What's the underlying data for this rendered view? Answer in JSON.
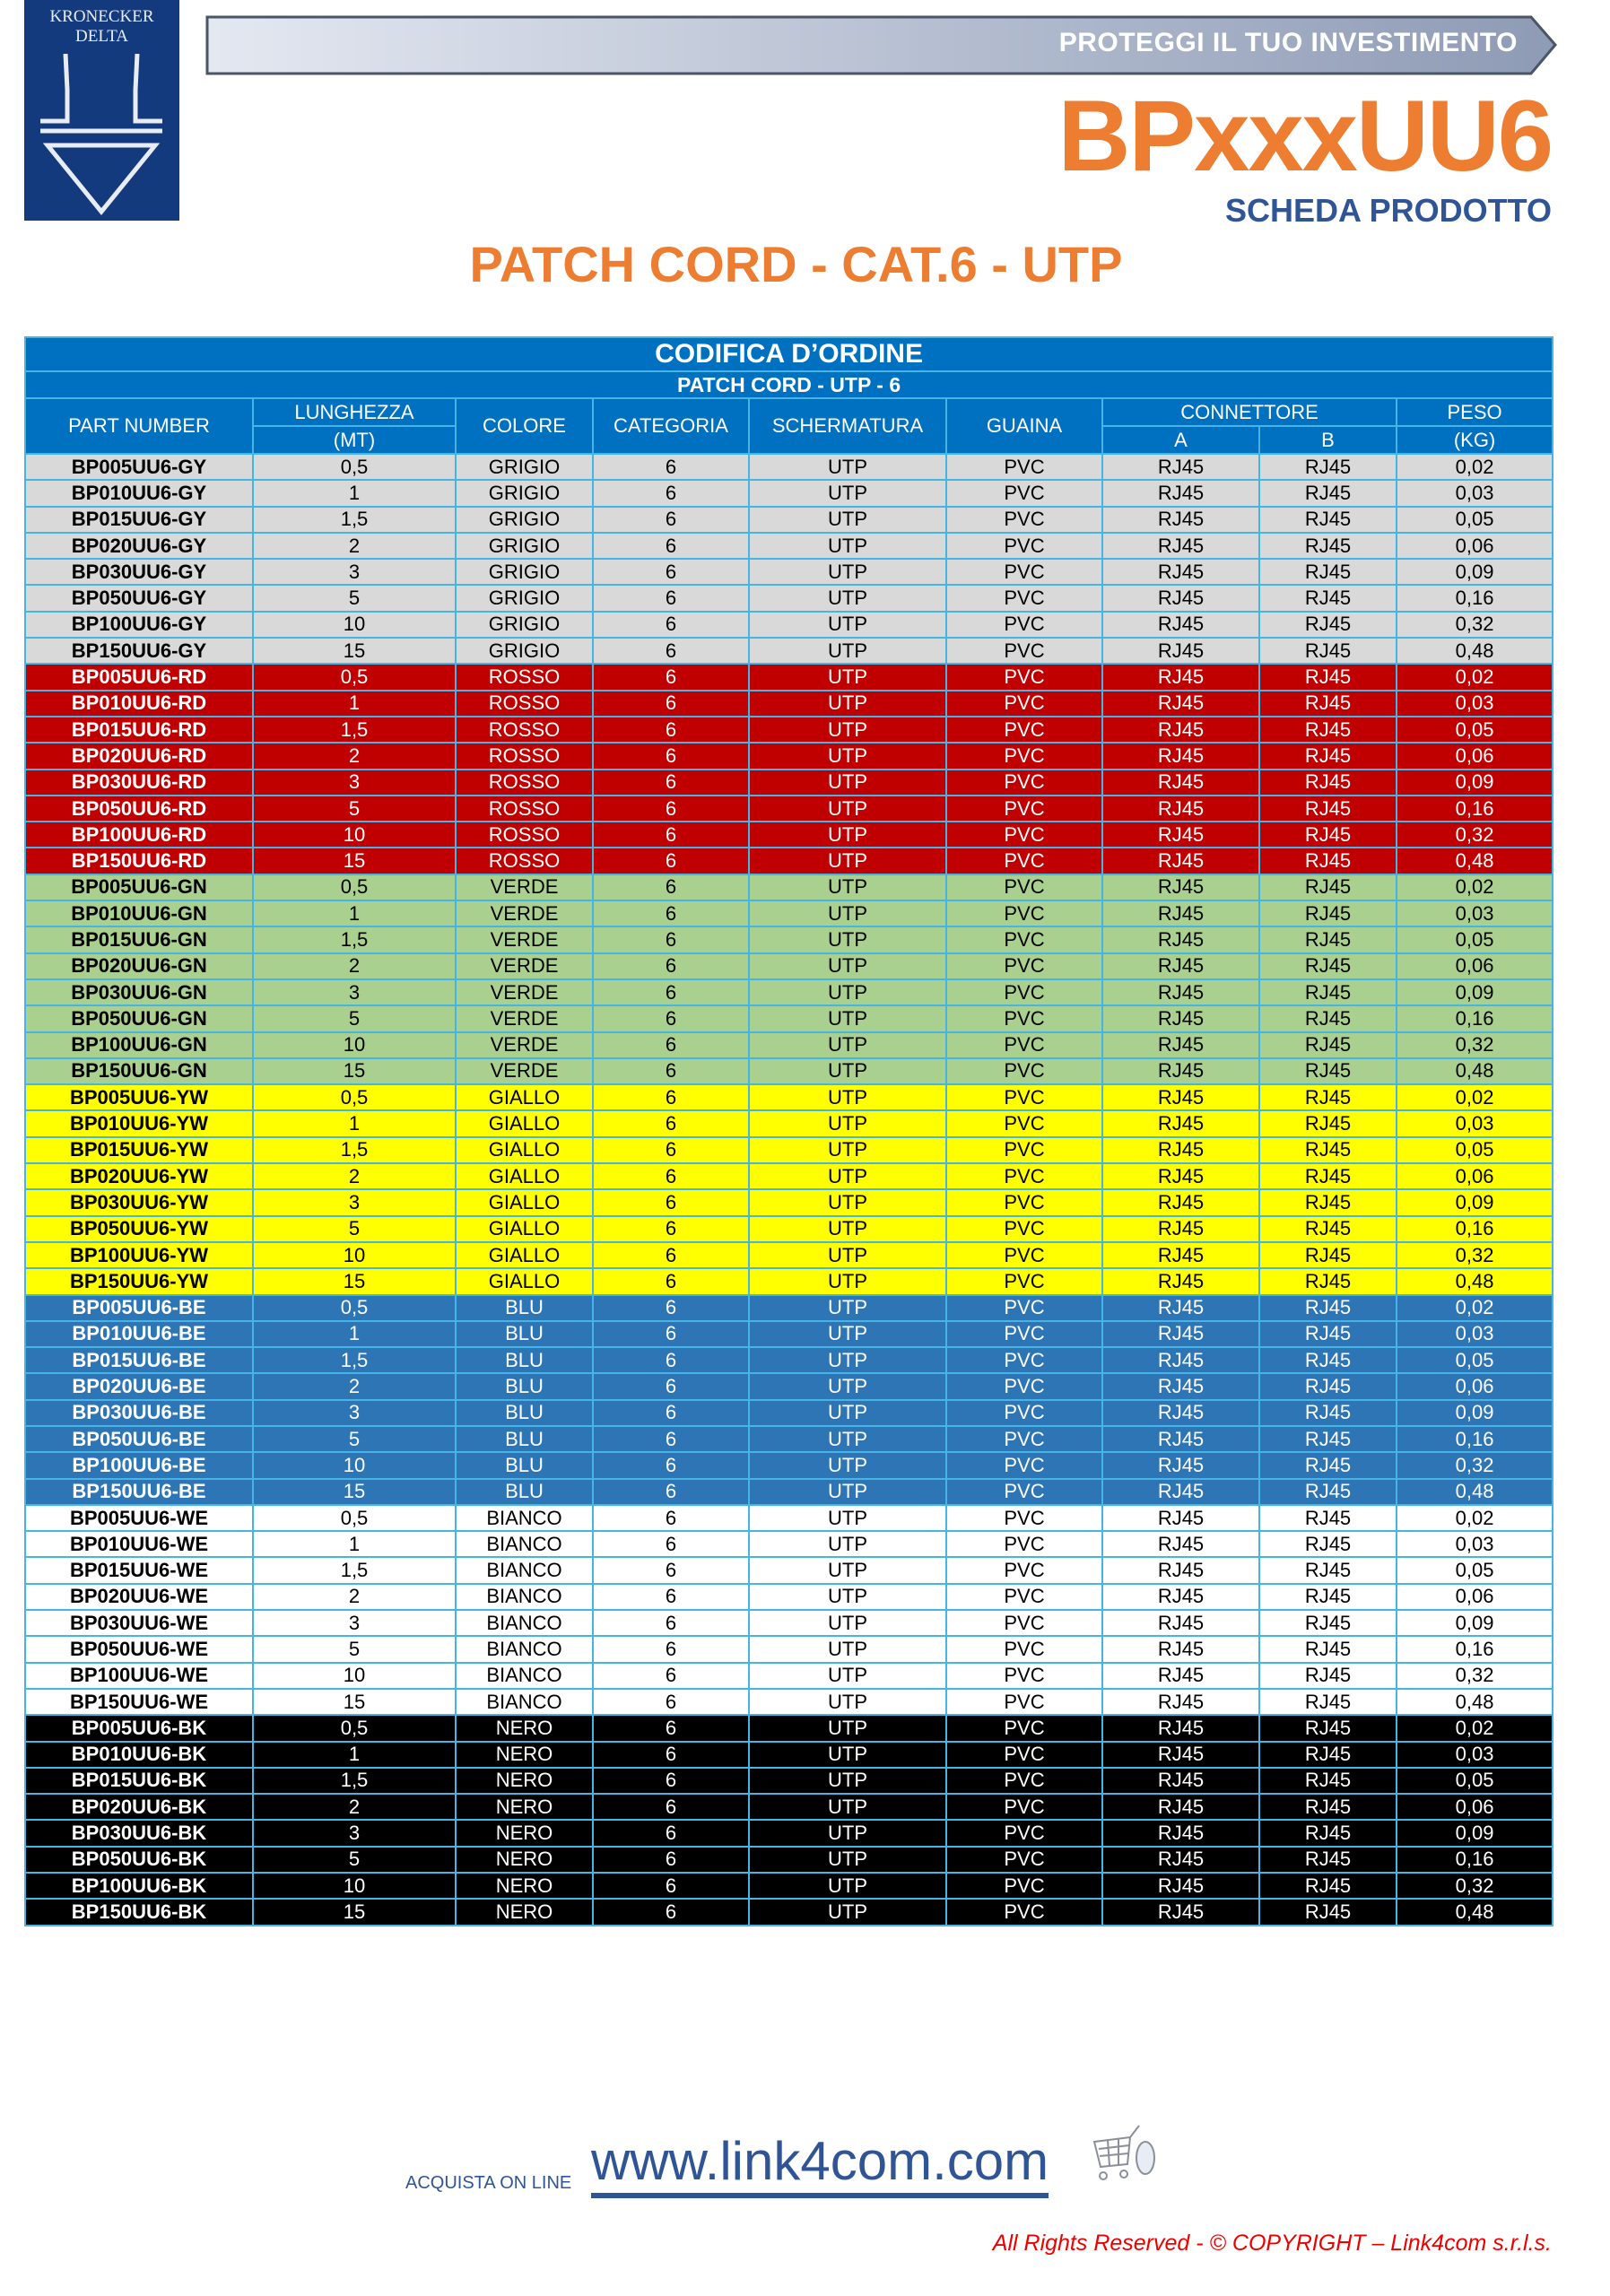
{
  "header": {
    "logo_text": "KRONECKER DELTA",
    "banner": "PROTEGGI IL TUO INVESTIMENTO",
    "product_code": "BPxxxUU6",
    "subtitle": "SCHEDA PRODOTTO",
    "title": "PATCH CORD - CAT.6 - UTP"
  },
  "table": {
    "title": "CODIFICA D’ORDINE",
    "subtitle": "PATCH CORD - UTP - 6",
    "headers": {
      "part_number": "PART NUMBER",
      "lunghezza": "LUNGHEZZA",
      "lunghezza_unit": "(MT)",
      "colore": "COLORE",
      "categoria": "CATEGORIA",
      "schermatura": "SCHERMATURA",
      "guaina": "GUAINA",
      "connettore": "CONNETTORE",
      "conn_a": "A",
      "conn_b": "B",
      "peso": "PESO",
      "peso_unit": "(KG)"
    },
    "groups": [
      {
        "bg": "#d9d9d9",
        "fg": "#000000",
        "rows": [
          [
            "BP005UU6-GY",
            "0,5",
            "GRIGIO",
            "6",
            "UTP",
            "PVC",
            "RJ45",
            "RJ45",
            "0,02"
          ],
          [
            "BP010UU6-GY",
            "1",
            "GRIGIO",
            "6",
            "UTP",
            "PVC",
            "RJ45",
            "RJ45",
            "0,03"
          ],
          [
            "BP015UU6-GY",
            "1,5",
            "GRIGIO",
            "6",
            "UTP",
            "PVC",
            "RJ45",
            "RJ45",
            "0,05"
          ],
          [
            "BP020UU6-GY",
            "2",
            "GRIGIO",
            "6",
            "UTP",
            "PVC",
            "RJ45",
            "RJ45",
            "0,06"
          ],
          [
            "BP030UU6-GY",
            "3",
            "GRIGIO",
            "6",
            "UTP",
            "PVC",
            "RJ45",
            "RJ45",
            "0,09"
          ],
          [
            "BP050UU6-GY",
            "5",
            "GRIGIO",
            "6",
            "UTP",
            "PVC",
            "RJ45",
            "RJ45",
            "0,16"
          ],
          [
            "BP100UU6-GY",
            "10",
            "GRIGIO",
            "6",
            "UTP",
            "PVC",
            "RJ45",
            "RJ45",
            "0,32"
          ],
          [
            "BP150UU6-GY",
            "15",
            "GRIGIO",
            "6",
            "UTP",
            "PVC",
            "RJ45",
            "RJ45",
            "0,48"
          ]
        ]
      },
      {
        "bg": "#c00000",
        "fg": "#ffffff",
        "rows": [
          [
            "BP005UU6-RD",
            "0,5",
            "ROSSO",
            "6",
            "UTP",
            "PVC",
            "RJ45",
            "RJ45",
            "0,02"
          ],
          [
            "BP010UU6-RD",
            "1",
            "ROSSO",
            "6",
            "UTP",
            "PVC",
            "RJ45",
            "RJ45",
            "0,03"
          ],
          [
            "BP015UU6-RD",
            "1,5",
            "ROSSO",
            "6",
            "UTP",
            "PVC",
            "RJ45",
            "RJ45",
            "0,05"
          ],
          [
            "BP020UU6-RD",
            "2",
            "ROSSO",
            "6",
            "UTP",
            "PVC",
            "RJ45",
            "RJ45",
            "0,06"
          ],
          [
            "BP030UU6-RD",
            "3",
            "ROSSO",
            "6",
            "UTP",
            "PVC",
            "RJ45",
            "RJ45",
            "0,09"
          ],
          [
            "BP050UU6-RD",
            "5",
            "ROSSO",
            "6",
            "UTP",
            "PVC",
            "RJ45",
            "RJ45",
            "0,16"
          ],
          [
            "BP100UU6-RD",
            "10",
            "ROSSO",
            "6",
            "UTP",
            "PVC",
            "RJ45",
            "RJ45",
            "0,32"
          ],
          [
            "BP150UU6-RD",
            "15",
            "ROSSO",
            "6",
            "UTP",
            "PVC",
            "RJ45",
            "RJ45",
            "0,48"
          ]
        ]
      },
      {
        "bg": "#a9d08e",
        "fg": "#000000",
        "rows": [
          [
            "BP005UU6-GN",
            "0,5",
            "VERDE",
            "6",
            "UTP",
            "PVC",
            "RJ45",
            "RJ45",
            "0,02"
          ],
          [
            "BP010UU6-GN",
            "1",
            "VERDE",
            "6",
            "UTP",
            "PVC",
            "RJ45",
            "RJ45",
            "0,03"
          ],
          [
            "BP015UU6-GN",
            "1,5",
            "VERDE",
            "6",
            "UTP",
            "PVC",
            "RJ45",
            "RJ45",
            "0,05"
          ],
          [
            "BP020UU6-GN",
            "2",
            "VERDE",
            "6",
            "UTP",
            "PVC",
            "RJ45",
            "RJ45",
            "0,06"
          ],
          [
            "BP030UU6-GN",
            "3",
            "VERDE",
            "6",
            "UTP",
            "PVC",
            "RJ45",
            "RJ45",
            "0,09"
          ],
          [
            "BP050UU6-GN",
            "5",
            "VERDE",
            "6",
            "UTP",
            "PVC",
            "RJ45",
            "RJ45",
            "0,16"
          ],
          [
            "BP100UU6-GN",
            "10",
            "VERDE",
            "6",
            "UTP",
            "PVC",
            "RJ45",
            "RJ45",
            "0,32"
          ],
          [
            "BP150UU6-GN",
            "15",
            "VERDE",
            "6",
            "UTP",
            "PVC",
            "RJ45",
            "RJ45",
            "0,48"
          ]
        ]
      },
      {
        "bg": "#ffff00",
        "fg": "#000000",
        "rows": [
          [
            "BP005UU6-YW",
            "0,5",
            "GIALLO",
            "6",
            "UTP",
            "PVC",
            "RJ45",
            "RJ45",
            "0,02"
          ],
          [
            "BP010UU6-YW",
            "1",
            "GIALLO",
            "6",
            "UTP",
            "PVC",
            "RJ45",
            "RJ45",
            "0,03"
          ],
          [
            "BP015UU6-YW",
            "1,5",
            "GIALLO",
            "6",
            "UTP",
            "PVC",
            "RJ45",
            "RJ45",
            "0,05"
          ],
          [
            "BP020UU6-YW",
            "2",
            "GIALLO",
            "6",
            "UTP",
            "PVC",
            "RJ45",
            "RJ45",
            "0,06"
          ],
          [
            "BP030UU6-YW",
            "3",
            "GIALLO",
            "6",
            "UTP",
            "PVC",
            "RJ45",
            "RJ45",
            "0,09"
          ],
          [
            "BP050UU6-YW",
            "5",
            "GIALLO",
            "6",
            "UTP",
            "PVC",
            "RJ45",
            "RJ45",
            "0,16"
          ],
          [
            "BP100UU6-YW",
            "10",
            "GIALLO",
            "6",
            "UTP",
            "PVC",
            "RJ45",
            "RJ45",
            "0,32"
          ],
          [
            "BP150UU6-YW",
            "15",
            "GIALLO",
            "6",
            "UTP",
            "PVC",
            "RJ45",
            "RJ45",
            "0,48"
          ]
        ]
      },
      {
        "bg": "#2e75b6",
        "fg": "#ffffff",
        "rows": [
          [
            "BP005UU6-BE",
            "0,5",
            "BLU",
            "6",
            "UTP",
            "PVC",
            "RJ45",
            "RJ45",
            "0,02"
          ],
          [
            "BP010UU6-BE",
            "1",
            "BLU",
            "6",
            "UTP",
            "PVC",
            "RJ45",
            "RJ45",
            "0,03"
          ],
          [
            "BP015UU6-BE",
            "1,5",
            "BLU",
            "6",
            "UTP",
            "PVC",
            "RJ45",
            "RJ45",
            "0,05"
          ],
          [
            "BP020UU6-BE",
            "2",
            "BLU",
            "6",
            "UTP",
            "PVC",
            "RJ45",
            "RJ45",
            "0,06"
          ],
          [
            "BP030UU6-BE",
            "3",
            "BLU",
            "6",
            "UTP",
            "PVC",
            "RJ45",
            "RJ45",
            "0,09"
          ],
          [
            "BP050UU6-BE",
            "5",
            "BLU",
            "6",
            "UTP",
            "PVC",
            "RJ45",
            "RJ45",
            "0,16"
          ],
          [
            "BP100UU6-BE",
            "10",
            "BLU",
            "6",
            "UTP",
            "PVC",
            "RJ45",
            "RJ45",
            "0,32"
          ],
          [
            "BP150UU6-BE",
            "15",
            "BLU",
            "6",
            "UTP",
            "PVC",
            "RJ45",
            "RJ45",
            "0,48"
          ]
        ]
      },
      {
        "bg": "#ffffff",
        "fg": "#000000",
        "rows": [
          [
            "BP005UU6-WE",
            "0,5",
            "BIANCO",
            "6",
            "UTP",
            "PVC",
            "RJ45",
            "RJ45",
            "0,02"
          ],
          [
            "BP010UU6-WE",
            "1",
            "BIANCO",
            "6",
            "UTP",
            "PVC",
            "RJ45",
            "RJ45",
            "0,03"
          ],
          [
            "BP015UU6-WE",
            "1,5",
            "BIANCO",
            "6",
            "UTP",
            "PVC",
            "RJ45",
            "RJ45",
            "0,05"
          ],
          [
            "BP020UU6-WE",
            "2",
            "BIANCO",
            "6",
            "UTP",
            "PVC",
            "RJ45",
            "RJ45",
            "0,06"
          ],
          [
            "BP030UU6-WE",
            "3",
            "BIANCO",
            "6",
            "UTP",
            "PVC",
            "RJ45",
            "RJ45",
            "0,09"
          ],
          [
            "BP050UU6-WE",
            "5",
            "BIANCO",
            "6",
            "UTP",
            "PVC",
            "RJ45",
            "RJ45",
            "0,16"
          ],
          [
            "BP100UU6-WE",
            "10",
            "BIANCO",
            "6",
            "UTP",
            "PVC",
            "RJ45",
            "RJ45",
            "0,32"
          ],
          [
            "BP150UU6-WE",
            "15",
            "BIANCO",
            "6",
            "UTP",
            "PVC",
            "RJ45",
            "RJ45",
            "0,48"
          ]
        ]
      },
      {
        "bg": "#000000",
        "fg": "#ffffff",
        "rows": [
          [
            "BP005UU6-BK",
            "0,5",
            "NERO",
            "6",
            "UTP",
            "PVC",
            "RJ45",
            "RJ45",
            "0,02"
          ],
          [
            "BP010UU6-BK",
            "1",
            "NERO",
            "6",
            "UTP",
            "PVC",
            "RJ45",
            "RJ45",
            "0,03"
          ],
          [
            "BP015UU6-BK",
            "1,5",
            "NERO",
            "6",
            "UTP",
            "PVC",
            "RJ45",
            "RJ45",
            "0,05"
          ],
          [
            "BP020UU6-BK",
            "2",
            "NERO",
            "6",
            "UTP",
            "PVC",
            "RJ45",
            "RJ45",
            "0,06"
          ],
          [
            "BP030UU6-BK",
            "3",
            "NERO",
            "6",
            "UTP",
            "PVC",
            "RJ45",
            "RJ45",
            "0,09"
          ],
          [
            "BP050UU6-BK",
            "5",
            "NERO",
            "6",
            "UTP",
            "PVC",
            "RJ45",
            "RJ45",
            "0,16"
          ],
          [
            "BP100UU6-BK",
            "10",
            "NERO",
            "6",
            "UTP",
            "PVC",
            "RJ45",
            "RJ45",
            "0,32"
          ],
          [
            "BP150UU6-BK",
            "15",
            "NERO",
            "6",
            "UTP",
            "PVC",
            "RJ45",
            "RJ45",
            "0,48"
          ]
        ]
      }
    ]
  },
  "footer": {
    "buy_label": "ACQUISTA ON LINE",
    "url": "www.link4com.com",
    "cart_icon": "shopping-cart-icon",
    "copyright": "All Rights Reserved - © COPYRIGHT – Link4com s.r.l.s."
  },
  "colors": {
    "accent": "#ed7d31",
    "header_blue": "#0070c0",
    "navy": "#2f5597",
    "copyright_red": "#ee0000"
  }
}
